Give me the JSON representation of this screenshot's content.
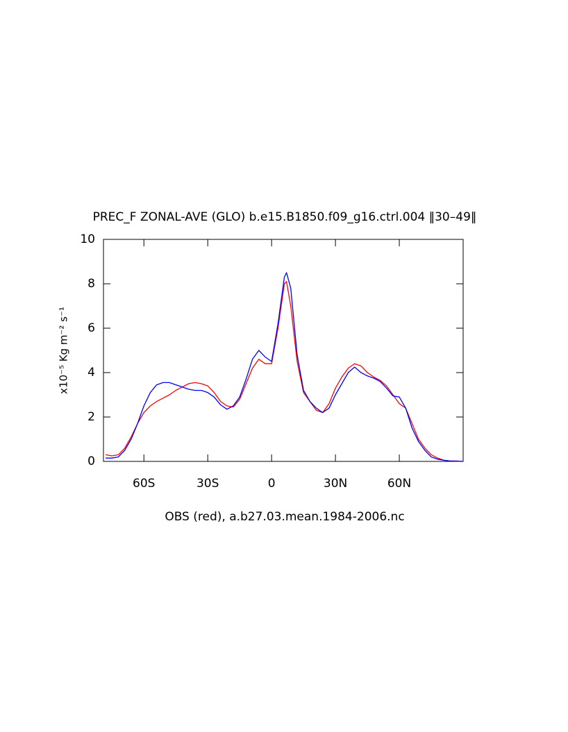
{
  "chart_data": {
    "type": "line",
    "title": "PREC_F ZONAL-AVE (GLO) b.e15.B1850.f09_g16.ctrl.004 ‖30–49‖",
    "ylabel": "x10⁻⁵ Kg m⁻² s⁻¹",
    "caption": "OBS (red), a.b27.03.mean.1984-2006.nc",
    "x": [
      -78,
      -75,
      -72,
      -69,
      -66,
      -63,
      -60,
      -57,
      -54,
      -51,
      -48,
      -45,
      -42,
      -39,
      -36,
      -33,
      -30,
      -27,
      -24,
      -21,
      -18,
      -15,
      -12,
      -9,
      -6,
      -3,
      0,
      3,
      6,
      7,
      9,
      12,
      15,
      18,
      21,
      24,
      27,
      30,
      33,
      36,
      39,
      42,
      45,
      48,
      51,
      54,
      57,
      60,
      63,
      66,
      69,
      72,
      75,
      78,
      81,
      84,
      87,
      90
    ],
    "series": [
      {
        "color": "#ff0000",
        "values": [
          0.3,
          0.25,
          0.3,
          0.6,
          1.1,
          1.7,
          2.2,
          2.5,
          2.7,
          2.85,
          3.0,
          3.2,
          3.35,
          3.5,
          3.55,
          3.5,
          3.4,
          3.1,
          2.7,
          2.5,
          2.45,
          2.8,
          3.5,
          4.2,
          4.6,
          4.4,
          4.4,
          6.0,
          8.0,
          8.1,
          7.0,
          4.5,
          3.1,
          2.7,
          2.3,
          2.2,
          2.6,
          3.3,
          3.8,
          4.2,
          4.4,
          4.3,
          4.0,
          3.8,
          3.65,
          3.4,
          3.0,
          2.6,
          2.4,
          1.7,
          1.0,
          0.6,
          0.3,
          0.15,
          0.05,
          0.02,
          0.02,
          0
        ]
      },
      {
        "color": "#0000ff",
        "values": [
          0.15,
          0.15,
          0.2,
          0.5,
          1.0,
          1.7,
          2.5,
          3.1,
          3.45,
          3.55,
          3.55,
          3.45,
          3.35,
          3.25,
          3.2,
          3.2,
          3.1,
          2.9,
          2.55,
          2.35,
          2.5,
          2.9,
          3.7,
          4.6,
          5.0,
          4.7,
          4.5,
          6.2,
          8.3,
          8.5,
          7.8,
          4.8,
          3.2,
          2.7,
          2.4,
          2.2,
          2.4,
          3.0,
          3.5,
          4.0,
          4.25,
          4.0,
          3.85,
          3.75,
          3.6,
          3.3,
          2.95,
          2.9,
          2.4,
          1.5,
          0.9,
          0.5,
          0.2,
          0.1,
          0.05,
          0.02,
          0.01,
          0
        ]
      }
    ],
    "xlim": [
      -79,
      90
    ],
    "xticks": [
      {
        "value": -60,
        "label": "60S"
      },
      {
        "value": -30,
        "label": "30S"
      },
      0,
      {
        "value": 30,
        "label": "30N"
      },
      {
        "value": 60,
        "label": "60N"
      }
    ],
    "ylim": [
      0,
      10
    ],
    "yticks": [
      0,
      2,
      4,
      6,
      8,
      10
    ]
  }
}
